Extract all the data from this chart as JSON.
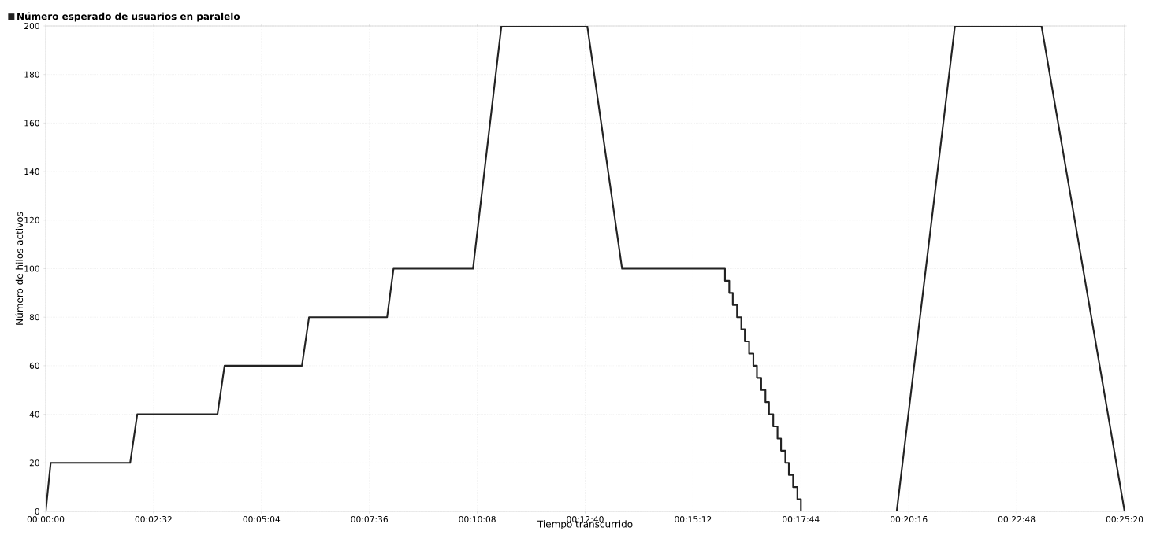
{
  "chart_data": {
    "type": "line",
    "xlabel": "Tiempo transcurrido",
    "ylabel": "Número de hilos activos",
    "x": [
      0,
      7,
      119,
      129,
      242,
      252,
      361,
      371,
      481,
      490,
      602,
      642,
      763,
      812,
      957,
      957,
      963,
      963,
      968,
      968,
      974,
      974,
      980,
      980,
      985,
      985,
      991,
      991,
      997,
      997,
      1002,
      1002,
      1008,
      1008,
      1014,
      1014,
      1019,
      1019,
      1025,
      1025,
      1031,
      1031,
      1036,
      1036,
      1042,
      1042,
      1047,
      1047,
      1053,
      1053,
      1059,
      1059,
      1064,
      1064,
      1199,
      1281,
      1403,
      1520
    ],
    "series": [
      {
        "name": "Número esperado de usuarios en paralelo",
        "color": "#222222",
        "values": [
          0,
          20,
          20,
          40,
          40,
          60,
          60,
          80,
          80,
          100,
          100,
          200,
          200,
          100,
          100,
          95,
          95,
          90,
          90,
          85,
          85,
          80,
          80,
          75,
          75,
          70,
          70,
          65,
          65,
          60,
          60,
          55,
          55,
          50,
          50,
          45,
          45,
          40,
          40,
          35,
          35,
          30,
          30,
          25,
          25,
          20,
          20,
          15,
          15,
          10,
          10,
          5,
          5,
          0,
          0,
          200,
          200,
          0
        ]
      }
    ],
    "xlim": [
      0,
      1520
    ],
    "xticks": [
      {
        "value": 0,
        "label": "00:00:00"
      },
      {
        "value": 152,
        "label": "00:02:32"
      },
      {
        "value": 304,
        "label": "00:05:04"
      },
      {
        "value": 456,
        "label": "00:07:36"
      },
      {
        "value": 608,
        "label": "00:10:08"
      },
      {
        "value": 760,
        "label": "00:12:40"
      },
      {
        "value": 912,
        "label": "00:15:12"
      },
      {
        "value": 1064,
        "label": "00:17:44"
      },
      {
        "value": 1216,
        "label": "00:20:16"
      },
      {
        "value": 1368,
        "label": "00:22:48"
      },
      {
        "value": 1520,
        "label": "00:25:20"
      }
    ],
    "ylim": [
      0,
      200
    ],
    "yticks": [
      0,
      20,
      40,
      60,
      80,
      100,
      120,
      140,
      160,
      180,
      200
    ],
    "grid": true,
    "legend": "top left",
    "marker": "none",
    "line_style": "solid"
  }
}
